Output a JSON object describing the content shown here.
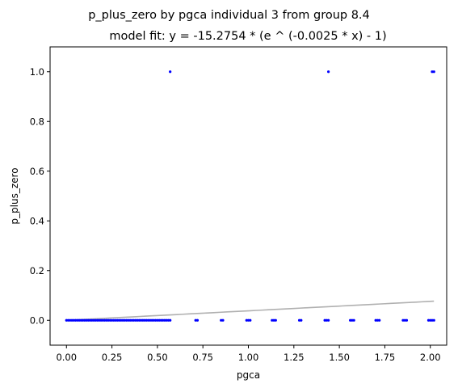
{
  "chart_data": {
    "type": "scatter",
    "title": "p_plus_zero by pgca individual 3 from group 8.4",
    "subtitle": "model fit: y = -15.2754 * (e ^ (-0.0025 * x) - 1)",
    "xlabel": "pgca",
    "ylabel": "p_plus_zero",
    "xlim": [
      -0.09,
      2.09
    ],
    "ylim": [
      -0.1,
      1.1
    ],
    "x_ticks": [
      0.0,
      0.25,
      0.5,
      0.75,
      1.0,
      1.25,
      1.5,
      1.75,
      2.0
    ],
    "x_tick_labels": [
      "0.00",
      "0.25",
      "0.50",
      "0.75",
      "1.00",
      "1.25",
      "1.50",
      "1.75",
      "2.00"
    ],
    "y_ticks": [
      0.0,
      0.2,
      0.4,
      0.6,
      0.8,
      1.0
    ],
    "y_tick_labels": [
      "0.0",
      "0.2",
      "0.4",
      "0.6",
      "0.8",
      "1.0"
    ],
    "grid": false,
    "point_color": "#0000ff",
    "fit_color": "#b0b0b0",
    "fit_coefficients": {
      "a": -15.2754,
      "b": -0.0025
    },
    "zero_points_x": [
      0.0,
      0.01,
      0.02,
      0.03,
      0.04,
      0.05,
      0.06,
      0.07,
      0.08,
      0.09,
      0.1,
      0.11,
      0.12,
      0.13,
      0.14,
      0.15,
      0.16,
      0.17,
      0.18,
      0.19,
      0.2,
      0.21,
      0.22,
      0.23,
      0.24,
      0.25,
      0.26,
      0.27,
      0.28,
      0.29,
      0.3,
      0.31,
      0.32,
      0.33,
      0.34,
      0.35,
      0.36,
      0.37,
      0.38,
      0.39,
      0.4,
      0.41,
      0.42,
      0.43,
      0.44,
      0.45,
      0.46,
      0.47,
      0.48,
      0.49,
      0.5,
      0.51,
      0.52,
      0.53,
      0.54,
      0.55,
      0.56,
      0.57,
      0.71,
      0.72,
      0.85,
      0.86,
      0.99,
      1.0,
      1.01,
      1.13,
      1.14,
      1.15,
      1.28,
      1.29,
      1.42,
      1.43,
      1.44,
      1.56,
      1.57,
      1.58,
      1.7,
      1.71,
      1.72,
      1.85,
      1.86,
      1.87,
      1.99,
      2.0,
      2.01,
      2.02
    ],
    "one_points_x": [
      0.57,
      1.44,
      2.01,
      2.02
    ]
  }
}
